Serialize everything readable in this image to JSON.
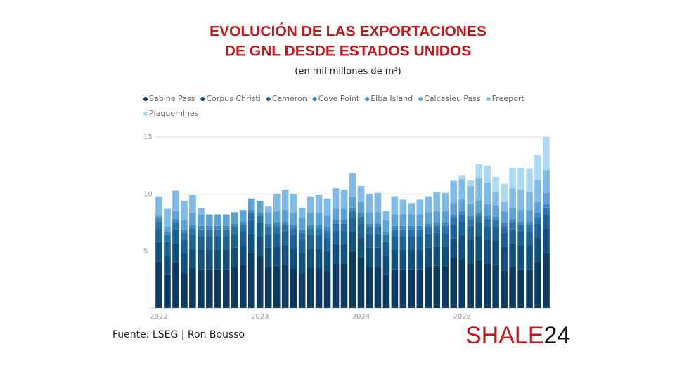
{
  "chart_data": {
    "type": "stacked_bar",
    "title": [
      "EVOLUCIÓN DE LAS EXPORTACIONES",
      "DE GNL DESDE ESTADOS UNIDOS"
    ],
    "subtitle": "(en mil millones de m³)",
    "source": "Fuente: LSEG | Ron Bousso",
    "logo": [
      "SHALE",
      "24"
    ],
    "categories": [
      "2022",
      null,
      null,
      null,
      null,
      null,
      null,
      null,
      null,
      null,
      null,
      null,
      "2023",
      null,
      null,
      null,
      null,
      null,
      null,
      null,
      null,
      null,
      null,
      null,
      "2024",
      null,
      null,
      null,
      null,
      null,
      null,
      null,
      null,
      null,
      null,
      null,
      "2025",
      null,
      null,
      null,
      null,
      null,
      null,
      null,
      null,
      null,
      null
    ],
    "ylim": [
      0,
      15
    ],
    "yticks": [
      5,
      10,
      15
    ],
    "grid": true,
    "legend": "top",
    "series": [
      {
        "name": "Sabine Pass",
        "color": "#0b3a63",
        "values": [
          4.1,
          2.9,
          4.0,
          3.1,
          3.5,
          3.4,
          3.4,
          3.4,
          3.4,
          3.6,
          3.8,
          4.8,
          4.6,
          3.6,
          3.7,
          3.8,
          3.5,
          3.1,
          3.5,
          3.5,
          3.3,
          3.9,
          3.9,
          5.0,
          4.5,
          3.6,
          3.6,
          2.9,
          3.4,
          3.4,
          3.4,
          3.4,
          3.6,
          3.7,
          3.7,
          4.4,
          4.3,
          3.9,
          4.2,
          3.9,
          3.8,
          3.3,
          3.6,
          3.4,
          3.4,
          4.1,
          4.9
        ]
      },
      {
        "name": "Corpus Christi",
        "color": "#10507f",
        "values": [
          1.7,
          1.7,
          1.7,
          1.7,
          1.7,
          1.7,
          1.7,
          1.7,
          1.7,
          1.7,
          1.7,
          1.7,
          1.7,
          1.7,
          1.7,
          1.7,
          1.7,
          1.7,
          1.7,
          1.7,
          1.7,
          1.7,
          1.7,
          1.7,
          1.7,
          1.7,
          1.7,
          1.7,
          1.7,
          1.7,
          1.7,
          1.7,
          1.7,
          1.7,
          1.7,
          1.7,
          2.1,
          2.1,
          2.1,
          2.1,
          2.1,
          2.1,
          2.1,
          2.1,
          2.1,
          2.1,
          2.1
        ]
      },
      {
        "name": "Cameron",
        "color": "#1a6398",
        "values": [
          1.2,
          1.2,
          1.2,
          1.2,
          1.2,
          1.2,
          1.2,
          1.2,
          1.2,
          1.2,
          1.2,
          1.2,
          1.2,
          1.2,
          1.2,
          1.2,
          1.2,
          1.2,
          1.2,
          1.2,
          1.2,
          1.2,
          1.2,
          1.2,
          1.2,
          1.2,
          1.2,
          1.2,
          1.2,
          1.2,
          1.2,
          1.2,
          1.2,
          1.2,
          1.2,
          1.2,
          1.2,
          1.2,
          1.2,
          1.2,
          1.2,
          1.2,
          1.2,
          1.2,
          1.2,
          1.2,
          1.2
        ]
      },
      {
        "name": "Cove Point",
        "color": "#2774ae",
        "values": [
          0.6,
          0.6,
          0.6,
          0.6,
          0.6,
          0.6,
          0.6,
          0.6,
          0.6,
          0.6,
          0.6,
          0.6,
          0.6,
          0.6,
          0.6,
          0.6,
          0.6,
          0.6,
          0.6,
          0.6,
          0.6,
          0.6,
          0.6,
          0.6,
          0.6,
          0.6,
          0.6,
          0.6,
          0.6,
          0.6,
          0.6,
          0.6,
          0.6,
          0.6,
          0.6,
          0.6,
          0.6,
          0.6,
          0.6,
          0.6,
          0.6,
          0.6,
          0.6,
          0.6,
          0.6,
          0.6,
          0.6
        ]
      },
      {
        "name": "Elba Island",
        "color": "#3c8ac4",
        "values": [
          0.3,
          0.3,
          0.3,
          0.3,
          0.3,
          0.3,
          0.3,
          0.3,
          0.3,
          0.3,
          0.3,
          0.3,
          0.3,
          0.3,
          0.3,
          0.3,
          0.3,
          0.3,
          0.3,
          0.3,
          0.3,
          0.3,
          0.3,
          0.3,
          0.3,
          0.3,
          0.3,
          0.3,
          0.3,
          0.3,
          0.3,
          0.3,
          0.3,
          0.3,
          0.3,
          0.3,
          0.3,
          0.3,
          0.3,
          0.3,
          0.3,
          0.3,
          0.3,
          0.3,
          0.3,
          0.3,
          0.3
        ]
      },
      {
        "name": "Calcasieu Pass",
        "color": "#5aa2d8",
        "values": [
          0.2,
          0.4,
          0.7,
          0.8,
          1.0,
          1.0,
          1.0,
          1.0,
          1.0,
          1.0,
          1.0,
          1.0,
          1.0,
          1.0,
          1.0,
          1.0,
          1.0,
          1.0,
          1.0,
          1.0,
          1.0,
          1.0,
          1.0,
          1.0,
          1.0,
          1.0,
          1.0,
          1.0,
          1.0,
          1.0,
          1.0,
          1.0,
          1.0,
          1.0,
          1.0,
          1.0,
          1.0,
          1.0,
          1.0,
          1.0,
          1.0,
          1.0,
          1.0,
          1.0,
          1.0,
          1.0,
          1.0
        ]
      },
      {
        "name": "Freeport",
        "color": "#7fbbe8",
        "values": [
          1.7,
          1.6,
          1.8,
          1.7,
          1.6,
          0.6,
          0,
          0,
          0,
          0,
          0,
          0,
          0,
          0.5,
          1.5,
          1.8,
          1.7,
          0.9,
          1.5,
          1.6,
          1.5,
          1.8,
          1.7,
          2.0,
          1.4,
          1.6,
          1.7,
          0.8,
          1.6,
          1.3,
          1.0,
          1.3,
          1.4,
          1.7,
          1.6,
          1.9,
          1.8,
          1.6,
          2.0,
          1.9,
          1.2,
          0.8,
          1.7,
          1.8,
          1.6,
          1.9,
          2.0
        ]
      },
      {
        "name": "Plaquemines",
        "color": "#a9daf5",
        "values": [
          0,
          0,
          0,
          0,
          0,
          0,
          0,
          0,
          0,
          0,
          0,
          0,
          0,
          0,
          0,
          0,
          0,
          0,
          0,
          0,
          0,
          0,
          0,
          0,
          0,
          0,
          0,
          0,
          0,
          0,
          0,
          0,
          0,
          0,
          0,
          0.1,
          0.3,
          0.5,
          1.2,
          1.5,
          1.3,
          1.6,
          1.8,
          1.9,
          2.0,
          2.2,
          2.9
        ]
      }
    ]
  }
}
